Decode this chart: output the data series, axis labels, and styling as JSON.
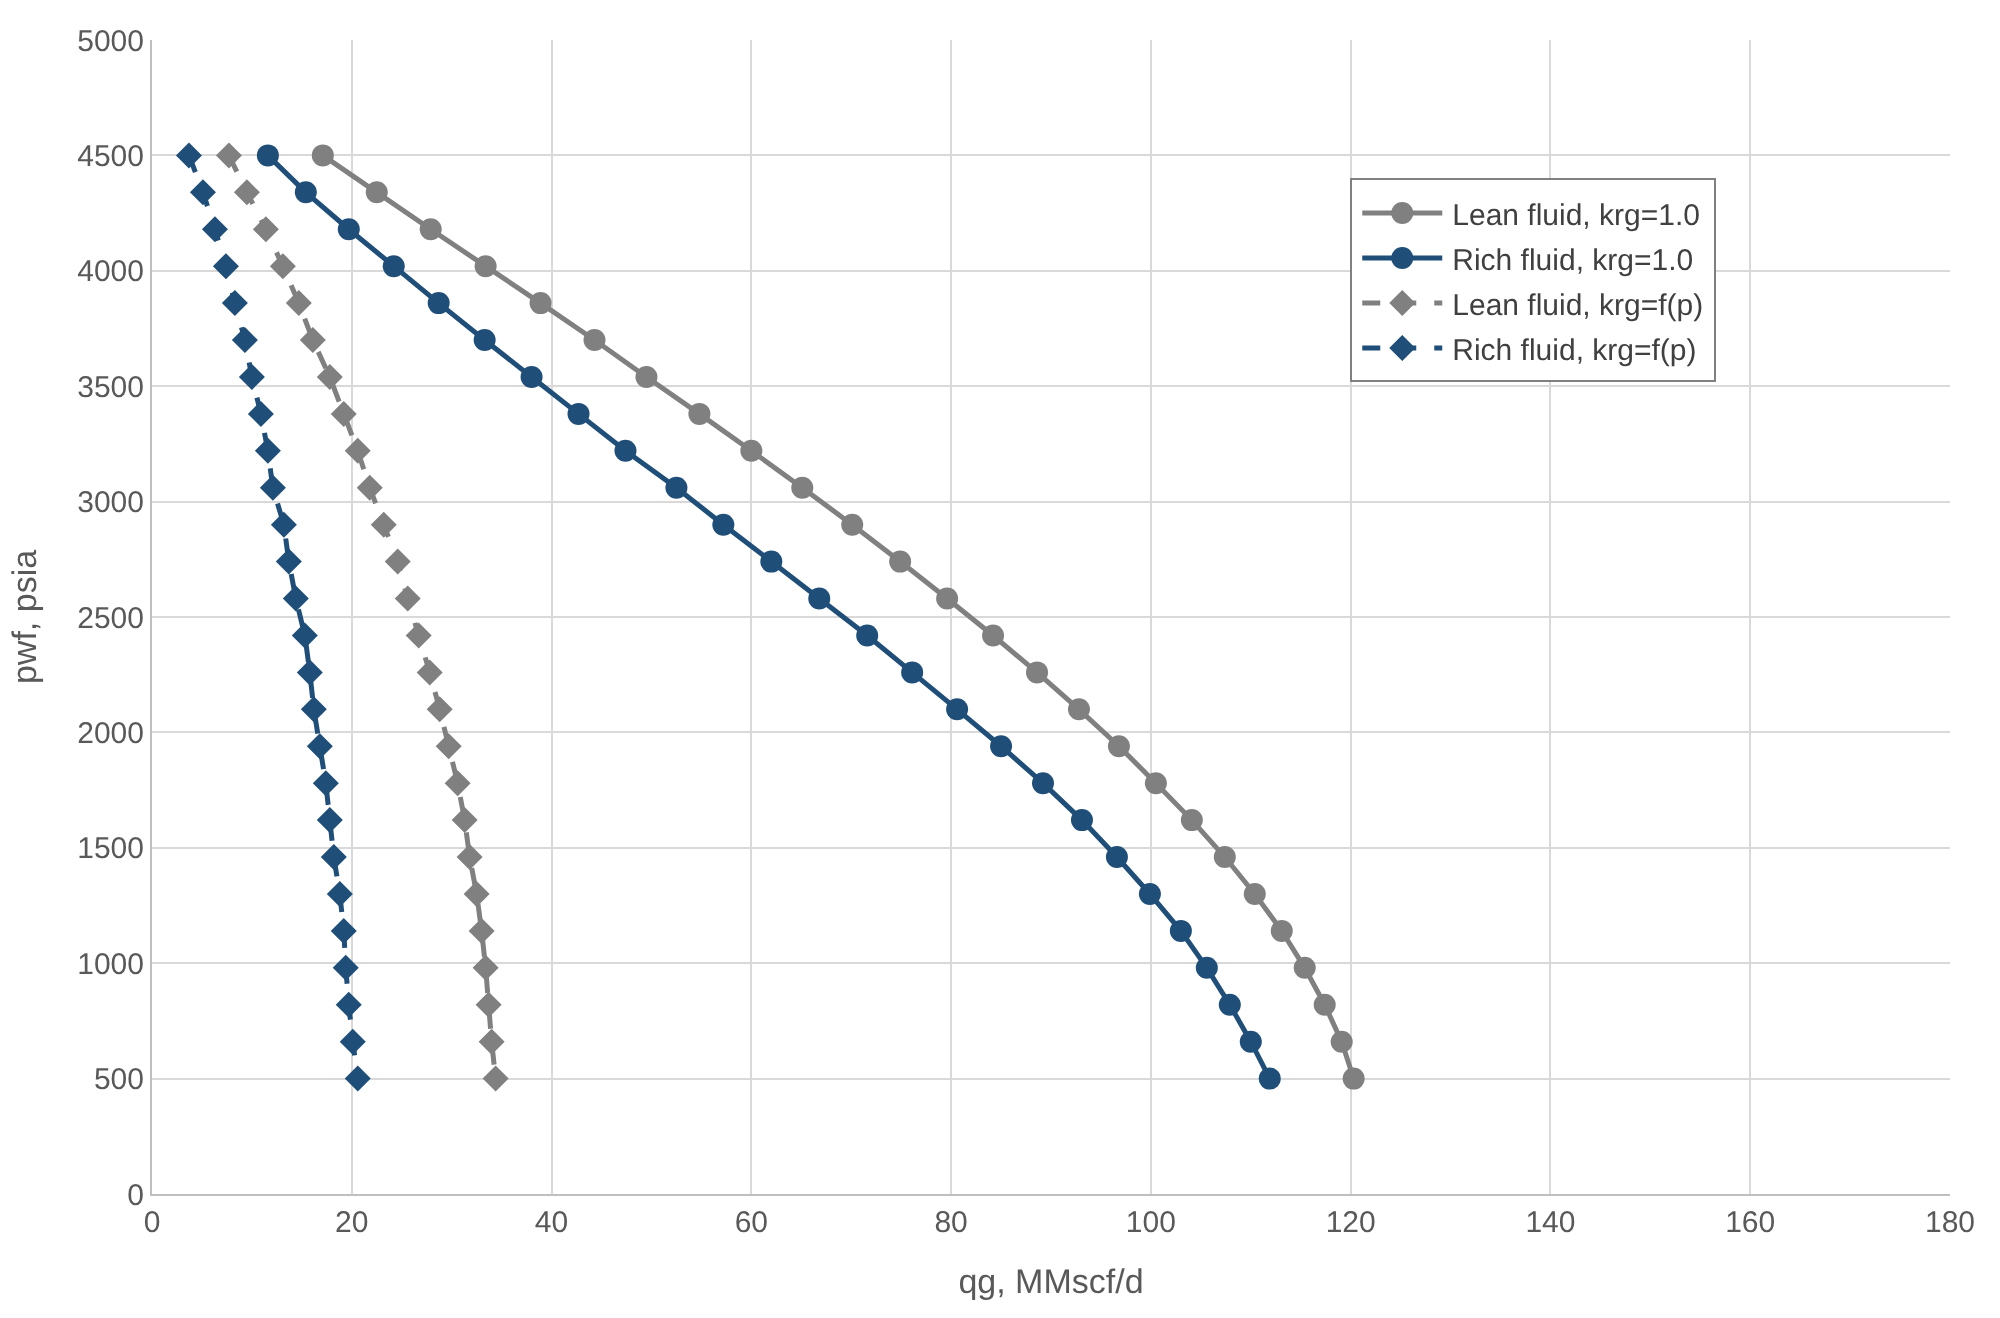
{
  "chart_data": {
    "type": "line",
    "xlabel": "qg, MMscf/d",
    "ylabel": "pwf, psia",
    "xlim": [
      0,
      180
    ],
    "xticks": [
      0,
      20,
      40,
      60,
      80,
      100,
      120,
      140,
      160,
      180
    ],
    "ylim": [
      0,
      5000
    ],
    "yticks": [
      0,
      500,
      1000,
      1500,
      2000,
      2500,
      3000,
      3500,
      4000,
      4500,
      5000
    ],
    "grid": true,
    "legend": "top right",
    "series": [
      {
        "name": "Lean fluid, krg=1.0",
        "color": "#808080",
        "marker": "circle",
        "line_style": "solid",
        "x": [
          17.1,
          22.5,
          27.9,
          33.4,
          38.9,
          44.3,
          49.5,
          54.8,
          60.0,
          65.1,
          70.1,
          74.9,
          79.6,
          84.2,
          88.6,
          92.8,
          96.8,
          100.5,
          104.1,
          107.4,
          110.4,
          113.1,
          115.4,
          117.4,
          119.1,
          120.3
        ],
        "values": [
          4500,
          4340,
          4180,
          4020,
          3860,
          3700,
          3540,
          3380,
          3220,
          3060,
          2900,
          2740,
          2580,
          2420,
          2260,
          2100,
          1940,
          1780,
          1620,
          1460,
          1300,
          1140,
          980,
          820,
          660,
          500
        ]
      },
      {
        "name": "Rich fluid, krg=1.0",
        "color": "#1f4e79",
        "marker": "circle",
        "line_style": "solid",
        "x": [
          11.6,
          15.4,
          19.7,
          24.2,
          28.7,
          33.3,
          38.0,
          42.7,
          47.4,
          52.5,
          57.2,
          62.0,
          66.8,
          71.6,
          76.1,
          80.6,
          85.0,
          89.2,
          93.1,
          96.6,
          99.9,
          103.0,
          105.6,
          107.9,
          110.0,
          111.9
        ],
        "values": [
          4500,
          4340,
          4180,
          4020,
          3860,
          3700,
          3540,
          3380,
          3220,
          3060,
          2900,
          2740,
          2580,
          2420,
          2260,
          2100,
          1940,
          1780,
          1620,
          1460,
          1300,
          1140,
          980,
          820,
          660,
          500
        ]
      },
      {
        "name": "Lean fluid, krg=f(p)",
        "color": "#808080",
        "marker": "diamond",
        "line_style": "dashed",
        "x": [
          7.7,
          9.5,
          11.4,
          13.1,
          14.7,
          16.1,
          17.8,
          19.2,
          20.6,
          21.8,
          23.2,
          24.6,
          25.6,
          26.7,
          27.8,
          28.8,
          29.7,
          30.6,
          31.3,
          31.8,
          32.5,
          33.0,
          33.4,
          33.7,
          34.0,
          34.4
        ],
        "values": [
          4500,
          4340,
          4180,
          4020,
          3860,
          3700,
          3540,
          3380,
          3220,
          3060,
          2900,
          2740,
          2580,
          2420,
          2260,
          2100,
          1940,
          1780,
          1620,
          1460,
          1300,
          1140,
          980,
          820,
          660,
          500
        ]
      },
      {
        "name": "Rich fluid, krg=f(p)",
        "color": "#1f4e79",
        "marker": "diamond",
        "line_style": "dashed",
        "x": [
          3.7,
          5.1,
          6.3,
          7.4,
          8.3,
          9.3,
          10.0,
          10.9,
          11.6,
          12.1,
          13.2,
          13.7,
          14.4,
          15.3,
          15.8,
          16.2,
          16.8,
          17.4,
          17.8,
          18.2,
          18.8,
          19.2,
          19.4,
          19.7,
          20.1,
          20.6
        ],
        "values": [
          4500,
          4340,
          4180,
          4020,
          3860,
          3700,
          3540,
          3380,
          3220,
          3060,
          2900,
          2740,
          2580,
          2420,
          2260,
          2100,
          1940,
          1780,
          1620,
          1460,
          1300,
          1140,
          980,
          820,
          660,
          500
        ]
      }
    ]
  }
}
